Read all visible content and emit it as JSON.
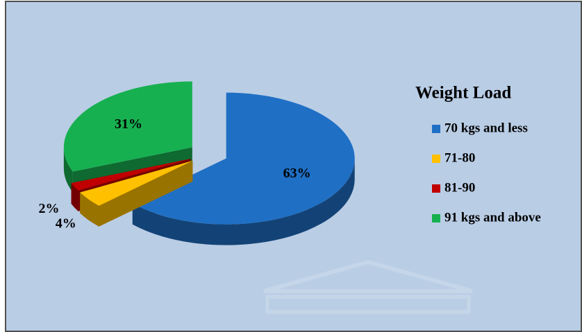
{
  "chart_data": {
    "type": "pie3d",
    "legend_title": "Weight Load",
    "categories": [
      "70 kgs and less",
      "71-80",
      "81-90",
      "91 kgs and above"
    ],
    "values": [
      63,
      4,
      2,
      31
    ],
    "value_labels": [
      "63%",
      "4%",
      "2%",
      "31%"
    ],
    "colors": [
      "#1f6fc5",
      "#ffc000",
      "#c00000",
      "#17b050"
    ],
    "legend": "right"
  }
}
